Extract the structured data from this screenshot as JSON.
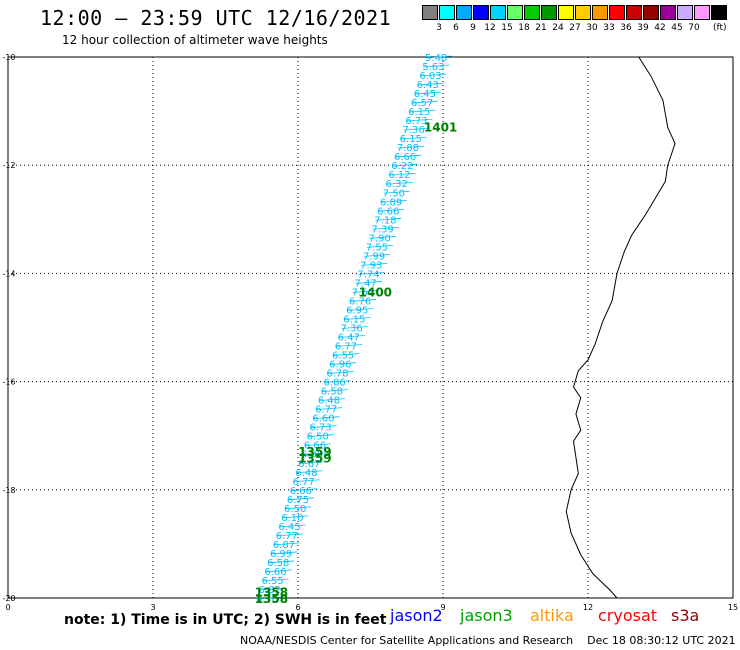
{
  "header": {
    "title": "12:00 — 23:59 UTC 12/16/2021",
    "subtitle": "12 hour collection of altimeter wave heights"
  },
  "legend": {
    "colors": [
      "#808080",
      "#00ffff",
      "#00aaff",
      "#0000ff",
      "#00d5ff",
      "#66ff66",
      "#00cc00",
      "#009900",
      "#ffff00",
      "#ffcc00",
      "#ff9900",
      "#ff0000",
      "#cc0000",
      "#990000",
      "#990099",
      "#ccaaff",
      "#ff99ff",
      "#000000"
    ],
    "labels": [
      "3",
      "6",
      "9",
      "12",
      "15",
      "18",
      "21",
      "24",
      "27",
      "30",
      "33",
      "36",
      "39",
      "42",
      "45",
      "70"
    ],
    "unit": "(ft)"
  },
  "map": {
    "x_ticks": [
      "0",
      "3",
      "6",
      "9",
      "12",
      "15"
    ],
    "y_ticks": [
      "-10",
      "-12",
      "-14",
      "-16",
      "-18",
      "-20"
    ],
    "x_range": [
      0,
      15
    ],
    "y_range": [
      -20,
      -10
    ],
    "track_color": "#00bfff",
    "time_color": "#008000",
    "coast_color": "#000000",
    "track_start": [
      5.4,
      -20.0
    ],
    "track_end": [
      8.9,
      -10.0
    ],
    "readings": [
      "5.48",
      "5.63",
      "6.03",
      "6.43",
      "6.45",
      "6.57",
      "6.15",
      "6.73",
      "7.36",
      "6.15",
      "7.88",
      "6.66",
      "6.22",
      "6.12",
      "6.32",
      "7.50",
      "6.89",
      "6.66",
      "7.18",
      "7.39",
      "7.90",
      "7.55",
      "7.99",
      "7.93",
      "7.74",
      "7.47",
      "7.60",
      "6.76",
      "6.95",
      "6.15",
      "7.36",
      "6.47",
      "6.77",
      "6.55",
      "6.96",
      "6.78",
      "6.86",
      "6.58",
      "6.48",
      "6.77",
      "6.60",
      "6.73",
      "6.50",
      "6.66",
      "6.30",
      "6.67",
      "6.48",
      "6.77",
      "6.66",
      "6.75",
      "6.50",
      "6.10",
      "6.45",
      "6.77",
      "6.87",
      "6.99",
      "6.58",
      "6.66",
      "6.55",
      "6.82",
      "6.76"
    ],
    "time_labels": [
      {
        "text": "1401",
        "lon": 8.95,
        "lat": -11.3
      },
      {
        "text": "1400",
        "lon": 7.6,
        "lat": -14.35
      },
      {
        "text": "1359",
        "lon": 6.35,
        "lat": -17.3
      },
      {
        "text": "1359",
        "lon": 6.35,
        "lat": -17.42
      },
      {
        "text": "1358",
        "lon": 5.45,
        "lat": -19.9
      },
      {
        "text": "1358",
        "lon": 5.45,
        "lat": -20.02
      }
    ],
    "coastline": [
      [
        13.05,
        -10.0
      ],
      [
        13.3,
        -10.35
      ],
      [
        13.55,
        -10.8
      ],
      [
        13.65,
        -11.3
      ],
      [
        13.8,
        -11.6
      ],
      [
        13.65,
        -12.0
      ],
      [
        13.6,
        -12.3
      ],
      [
        13.4,
        -12.6
      ],
      [
        13.2,
        -12.9
      ],
      [
        12.9,
        -13.3
      ],
      [
        12.75,
        -13.6
      ],
      [
        12.6,
        -14.0
      ],
      [
        12.5,
        -14.5
      ],
      [
        12.3,
        -14.9
      ],
      [
        12.15,
        -15.3
      ],
      [
        12.0,
        -15.6
      ],
      [
        11.8,
        -15.8
      ],
      [
        11.7,
        -16.1
      ],
      [
        11.85,
        -16.3
      ],
      [
        11.75,
        -16.6
      ],
      [
        11.85,
        -16.9
      ],
      [
        11.7,
        -17.1
      ],
      [
        11.75,
        -17.4
      ],
      [
        11.8,
        -17.7
      ],
      [
        11.65,
        -18.0
      ],
      [
        11.55,
        -18.4
      ],
      [
        11.65,
        -18.8
      ],
      [
        11.85,
        -19.2
      ],
      [
        12.1,
        -19.55
      ],
      [
        12.45,
        -19.85
      ],
      [
        12.6,
        -20.0
      ]
    ]
  },
  "footer": {
    "note": "note: 1) Time is in UTC; 2) SWH is in feet",
    "satellites": [
      {
        "name": "jason2",
        "color": "#0000ff"
      },
      {
        "name": "jason3",
        "color": "#00a000"
      },
      {
        "name": "altika",
        "color": "#ff9900"
      },
      {
        "name": "cryosat",
        "color": "#ff0000"
      },
      {
        "name": "s3a",
        "color": "#990000"
      }
    ],
    "credit": "NOAA/NESDIS Center for Satellite Applications and Research    Dec 18 08:30:12 UTC 2021"
  }
}
